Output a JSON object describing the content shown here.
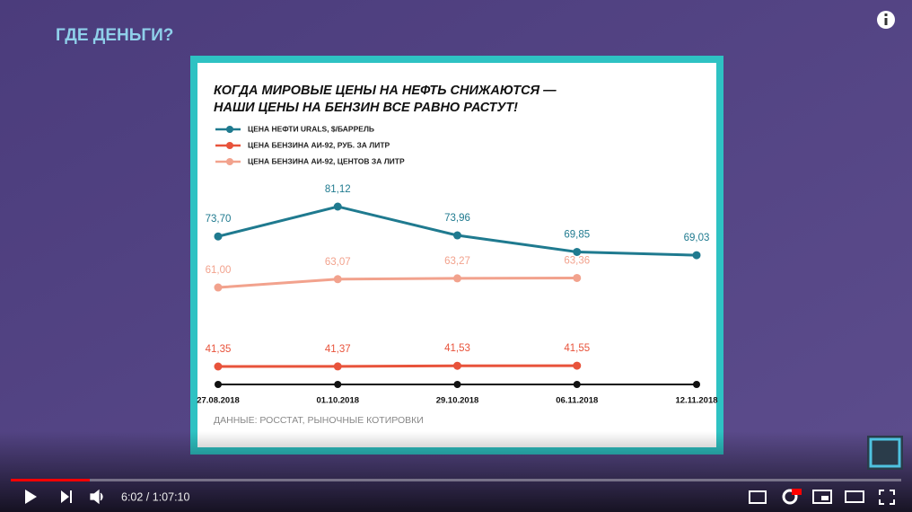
{
  "header_title": "ГДЕ ДЕНЬГИ?",
  "chart_data": {
    "type": "line",
    "title": [
      "КОГДА МИРОВЫЕ ЦЕНЫ НА НЕФТЬ СНИЖАЮТСЯ —",
      "НАШИ ЦЕНЫ НА БЕНЗИН ВСЕ РАВНО РАСТУТ!"
    ],
    "categories": [
      "27.08.2018",
      "01.10.2018",
      "29.10.2018",
      "06.11.2018",
      "12.11.2018"
    ],
    "series": [
      {
        "name": "ЦЕНА НЕФТИ URALS, $/БАРРЕЛЬ",
        "color": "#1f7a8f",
        "values": [
          73.7,
          81.12,
          73.96,
          69.85,
          69.03
        ],
        "value_labels": [
          "73,70",
          "81,12",
          "73,96",
          "69,85",
          "69,03"
        ]
      },
      {
        "name": "ЦЕНА БЕНЗИНА АИ-92, РУБ. ЗА ЛИТР",
        "color": "#e8533b",
        "values": [
          41.35,
          41.37,
          41.53,
          41.55,
          null
        ],
        "value_labels": [
          "41,35",
          "41,37",
          "41,53",
          "41,55",
          null
        ]
      },
      {
        "name": "ЦЕНА БЕНЗИНА АИ-92, ЦЕНТОВ ЗА ЛИТР",
        "color": "#f2a28d",
        "values": [
          61.0,
          63.07,
          63.27,
          63.36,
          null
        ],
        "value_labels": [
          "61,00",
          "63,07",
          "63,27",
          "63,36",
          null
        ]
      }
    ],
    "source": "ДАННЫЕ: РОССТАТ, РЫНОЧНЫЕ КОТИРОВКИ"
  },
  "player": {
    "time": "6:02 / 1:07:10"
  }
}
